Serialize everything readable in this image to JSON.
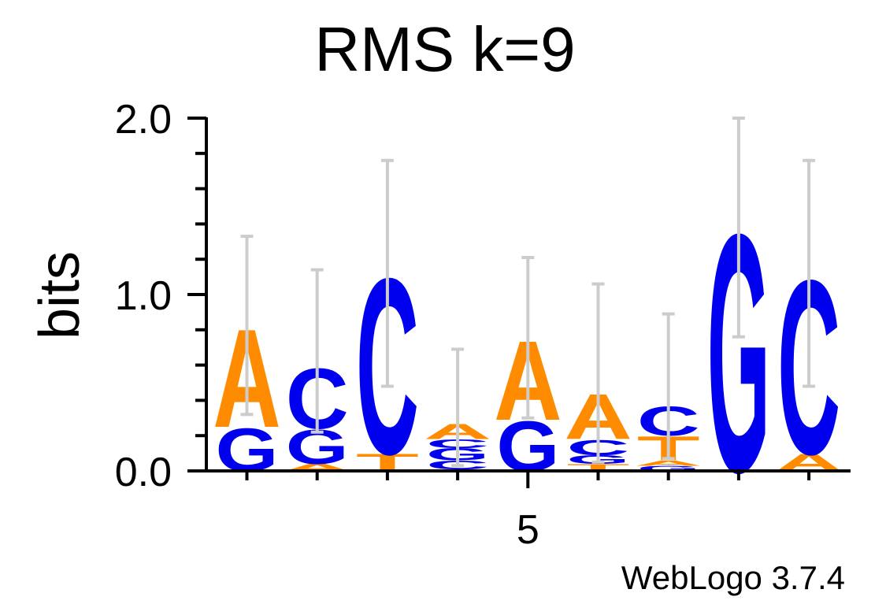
{
  "title": "RMS k=9",
  "credit": "WebLogo 3.7.4",
  "colors": {
    "A": "#ff8c00",
    "T": "#ff8c00",
    "C": "#0000ee",
    "G": "#0000ee",
    "axis": "#000000",
    "error_bar": "#cccccc"
  },
  "chart_data": {
    "type": "sequence-logo",
    "title": "RMS k=9",
    "ylabel": "bits",
    "xlabel": "",
    "ylim": [
      0,
      2
    ],
    "y_ticks": [
      "0.0",
      "1.0",
      "2.0"
    ],
    "x_tick_labels": [
      {
        "position": 5,
        "label": "5"
      }
    ],
    "positions": [
      {
        "pos": 1,
        "stack": [
          {
            "letter": "G",
            "height": 0.25
          },
          {
            "letter": "A",
            "height": 0.57
          }
        ],
        "error": [
          0.32,
          1.33
        ]
      },
      {
        "pos": 2,
        "stack": [
          {
            "letter": "A",
            "height": 0.04
          },
          {
            "letter": "G",
            "height": 0.2
          },
          {
            "letter": "C",
            "height": 0.35
          }
        ],
        "error": [
          0.22,
          1.14
        ]
      },
      {
        "pos": 3,
        "stack": [
          {
            "letter": "T",
            "height": 0.1
          },
          {
            "letter": "C",
            "height": 1.02
          }
        ],
        "error": [
          0.48,
          1.76
        ]
      },
      {
        "pos": 4,
        "stack": [
          {
            "letter": "T",
            "height": 0.01
          },
          {
            "letter": "C",
            "height": 0.05
          },
          {
            "letter": "G",
            "height": 0.07
          },
          {
            "letter": "C",
            "height": 0.05
          },
          {
            "letter": "A",
            "height": 0.09
          }
        ],
        "error": [
          0.03,
          0.69
        ]
      },
      {
        "pos": 5,
        "stack": [
          {
            "letter": "G",
            "height": 0.29
          },
          {
            "letter": "A",
            "height": 0.46
          }
        ],
        "error": [
          0.3,
          1.21
        ]
      },
      {
        "pos": 6,
        "stack": [
          {
            "letter": "T",
            "height": 0.04
          },
          {
            "letter": "G",
            "height": 0.05
          },
          {
            "letter": "C",
            "height": 0.09
          },
          {
            "letter": "A",
            "height": 0.26
          }
        ],
        "error": [
          0.05,
          1.06
        ]
      },
      {
        "pos": 7,
        "stack": [
          {
            "letter": "G",
            "height": 0.03
          },
          {
            "letter": "A",
            "height": 0.03
          },
          {
            "letter": "T",
            "height": 0.14
          },
          {
            "letter": "C",
            "height": 0.17
          }
        ],
        "error": [
          0.07,
          0.89
        ]
      },
      {
        "pos": 8,
        "stack": [
          {
            "letter": "G",
            "height": 1.38
          }
        ],
        "error": [
          0.76,
          2.0
        ]
      },
      {
        "pos": 9,
        "stack": [
          {
            "letter": "A",
            "height": 0.1
          },
          {
            "letter": "C",
            "height": 1.01
          }
        ],
        "error": [
          0.48,
          1.76
        ]
      }
    ]
  }
}
